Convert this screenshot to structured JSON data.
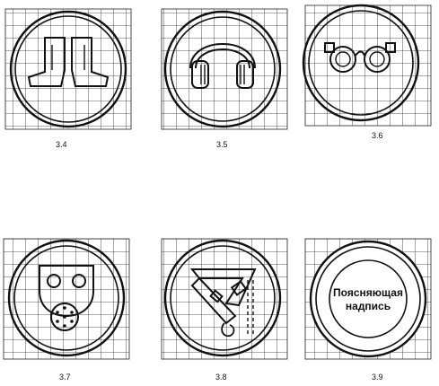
{
  "figures": [
    {
      "id": "3.4",
      "caption": "3.4",
      "icon": "boots-icon"
    },
    {
      "id": "3.5",
      "caption": "3.5",
      "icon": "ear-protectors-icon"
    },
    {
      "id": "3.6",
      "caption": "3.6",
      "icon": "safety-goggles-icon"
    },
    {
      "id": "3.7",
      "caption": "3.7",
      "icon": "gas-mask-icon"
    },
    {
      "id": "3.8",
      "caption": "3.8",
      "icon": "safety-belt-icon"
    },
    {
      "id": "3.9",
      "caption": "3.9",
      "icon": "explanatory-inscription-icon",
      "inscription": [
        "Поясняющая",
        "надпись"
      ]
    }
  ]
}
